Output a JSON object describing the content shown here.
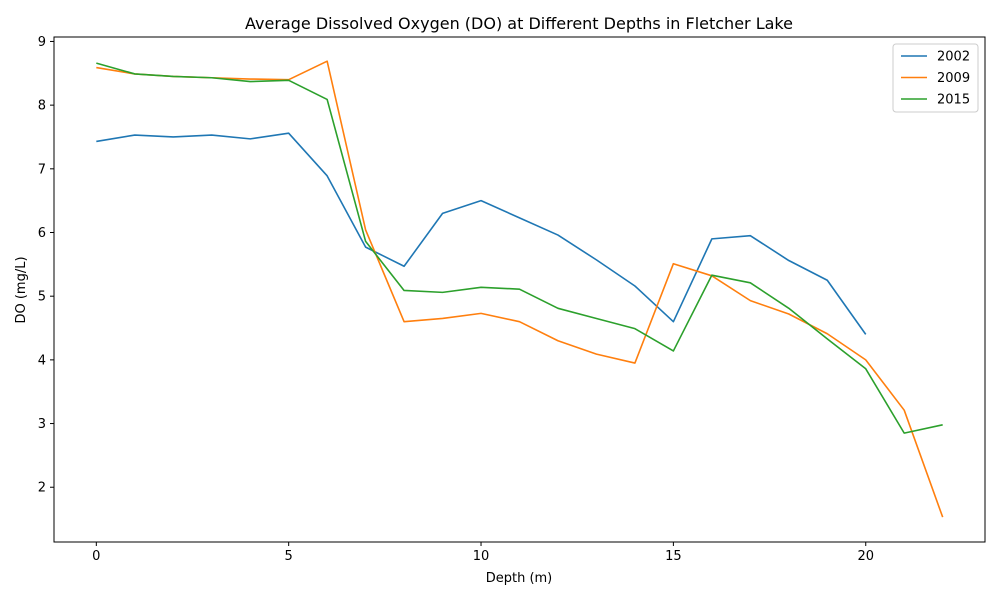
{
  "chart_data": {
    "type": "line",
    "title": "Average Dissolved Oxygen (DO) at Different Depths in Fletcher Lake",
    "xlabel": "Depth (m)",
    "ylabel": "DO (mg/L)",
    "xlim": [
      -1.1,
      23.1
    ],
    "ylim": [
      1.14,
      9.07
    ],
    "xticks": [
      0,
      5,
      10,
      15,
      20
    ],
    "yticks": [
      2,
      3,
      4,
      5,
      6,
      7,
      8,
      9
    ],
    "grid": false,
    "legend_position": "top-right",
    "series": [
      {
        "name": "2002",
        "color": "#1f77b4",
        "x": [
          0,
          1,
          2,
          3,
          4,
          5,
          6,
          7,
          8,
          9,
          10,
          11,
          12,
          13,
          14,
          15,
          16,
          17,
          18,
          19,
          20
        ],
        "y": [
          7.43,
          7.53,
          7.5,
          7.53,
          7.47,
          7.56,
          6.89,
          5.77,
          5.47,
          6.3,
          6.5,
          6.23,
          5.96,
          5.57,
          5.16,
          4.6,
          5.9,
          5.95,
          5.56,
          5.25,
          4.4
        ]
      },
      {
        "name": "2009",
        "color": "#ff7f0e",
        "x": [
          0,
          1,
          2,
          3,
          4,
          5,
          6,
          7,
          8,
          9,
          10,
          11,
          12,
          13,
          14,
          15,
          16,
          17,
          18,
          19,
          20,
          21,
          22
        ],
        "y": [
          8.59,
          8.49,
          8.45,
          8.43,
          8.41,
          8.4,
          8.69,
          6.04,
          4.6,
          4.65,
          4.73,
          4.6,
          4.3,
          4.09,
          3.95,
          5.51,
          5.32,
          4.93,
          4.72,
          4.41,
          4.0,
          3.21,
          1.53
        ]
      },
      {
        "name": "2015",
        "color": "#2ca02c",
        "x": [
          0,
          1,
          2,
          3,
          4,
          5,
          6,
          7,
          8,
          9,
          10,
          11,
          12,
          13,
          14,
          15,
          16,
          17,
          18,
          19,
          20,
          21,
          22
        ],
        "y": [
          8.66,
          8.49,
          8.45,
          8.43,
          8.37,
          8.39,
          8.09,
          5.86,
          5.09,
          5.06,
          5.14,
          5.11,
          4.81,
          4.65,
          4.49,
          4.14,
          5.33,
          5.21,
          4.81,
          4.33,
          3.86,
          2.85,
          2.98
        ]
      }
    ]
  }
}
